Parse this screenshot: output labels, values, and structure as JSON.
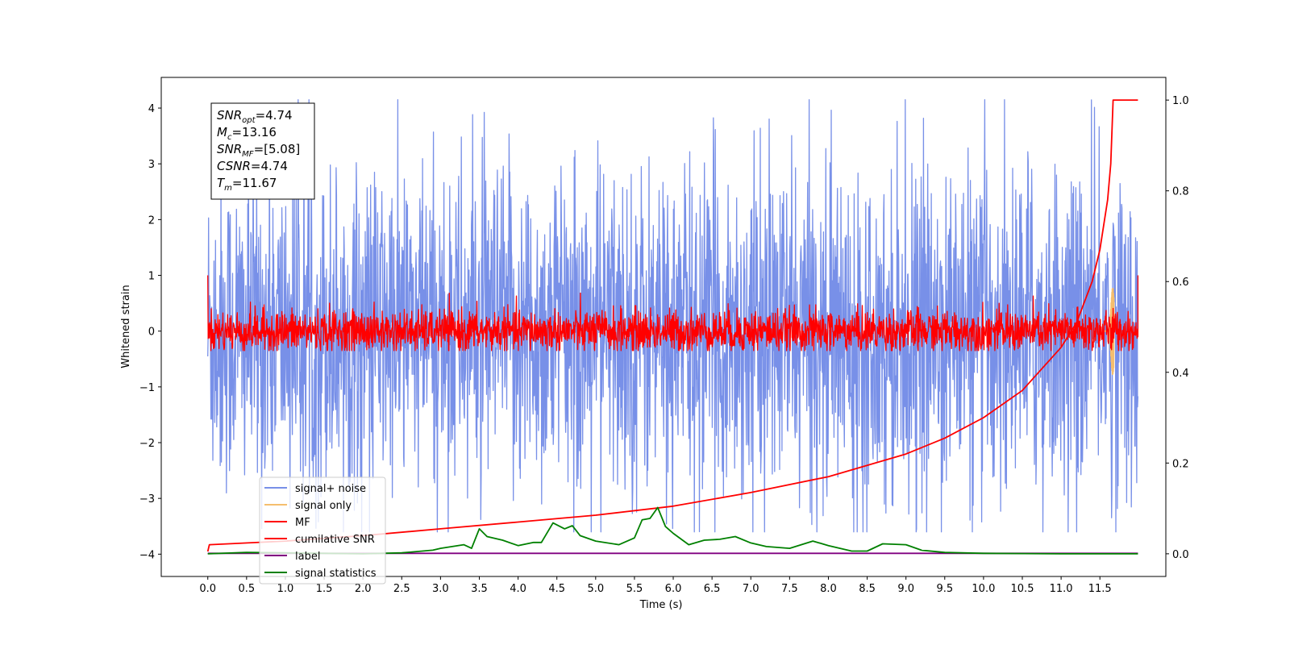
{
  "chart_data": {
    "type": "line",
    "title": "",
    "xlabel": "Time (s)",
    "ylabel": "Whitened strain",
    "xlim": [
      -0.6,
      12.35
    ],
    "ylim": [
      -4.4,
      4.55
    ],
    "y2lim": [
      -0.05,
      1.05
    ],
    "grid": false,
    "legend_position": "lower-left",
    "x_ticks": [
      "0.0",
      "0.5",
      "1.0",
      "1.5",
      "2.0",
      "2.5",
      "3.0",
      "3.5",
      "4.0",
      "4.5",
      "5.0",
      "5.5",
      "6.0",
      "6.5",
      "7.0",
      "7.5",
      "8.0",
      "8.5",
      "9.0",
      "9.5",
      "10.0",
      "10.5",
      "11.0",
      "11.5"
    ],
    "y_ticks": [
      "4",
      "3",
      "2",
      "1",
      "0",
      "−1",
      "−2",
      "−3",
      "−4"
    ],
    "y_tick_values": [
      4,
      3,
      2,
      1,
      0,
      -1,
      -2,
      -3,
      -4
    ],
    "y2_ticks": [
      "1.0",
      "0.8",
      "0.6",
      "0.4",
      "0.2",
      "0.0"
    ],
    "y2_tick_values": [
      1.0,
      0.8,
      0.6,
      0.4,
      0.2,
      0.0
    ],
    "series": [
      {
        "name": "signal+ noise",
        "color": "#7890e8",
        "axis": "left",
        "kind": "noise",
        "x_range": [
          0.0,
          11.99
        ],
        "amplitude_range": [
          -3.6,
          4.15
        ]
      },
      {
        "name": "signal only",
        "color": "#f5be6e",
        "axis": "left",
        "kind": "chirp",
        "merger_time": 11.67,
        "peak_amplitude": 0.78
      },
      {
        "name": "MF",
        "color": "#ff0000",
        "axis": "left",
        "kind": "noise",
        "x_range": [
          0.0,
          11.99
        ],
        "amplitude_range": [
          -0.35,
          1.0
        ]
      },
      {
        "name": "cumilative SNR",
        "color": "#ff0000",
        "axis": "right",
        "x": [
          0.0,
          0.02,
          1.0,
          2.0,
          3.0,
          4.0,
          5.0,
          6.0,
          7.0,
          8.0,
          9.0,
          9.5,
          10.0,
          10.5,
          11.0,
          11.2,
          11.4,
          11.5,
          11.6,
          11.64,
          11.67,
          11.99
        ],
        "y": [
          0.005,
          0.02,
          0.028,
          0.04,
          0.055,
          0.07,
          0.085,
          0.105,
          0.135,
          0.17,
          0.22,
          0.255,
          0.3,
          0.36,
          0.455,
          0.51,
          0.6,
          0.67,
          0.78,
          0.86,
          1.0,
          1.0
        ]
      },
      {
        "name": "label",
        "color": "#800080",
        "axis": "right",
        "x": [
          0.0,
          11.99
        ],
        "y": [
          0.001,
          0.001
        ]
      },
      {
        "name": "signal statistics",
        "color": "#008000",
        "axis": "right",
        "x": [
          0.0,
          0.5,
          1.0,
          1.5,
          2.0,
          2.5,
          2.9,
          3.0,
          3.3,
          3.4,
          3.5,
          3.6,
          3.8,
          4.0,
          4.2,
          4.3,
          4.45,
          4.6,
          4.7,
          4.8,
          5.0,
          5.3,
          5.5,
          5.6,
          5.7,
          5.8,
          5.9,
          6.0,
          6.2,
          6.4,
          6.6,
          6.8,
          7.0,
          7.2,
          7.5,
          7.8,
          8.0,
          8.3,
          8.5,
          8.7,
          9.0,
          9.2,
          9.5,
          10.0,
          11.0,
          11.99
        ],
        "y": [
          0.0,
          0.003,
          0.002,
          0.001,
          0.0,
          0.002,
          0.008,
          0.012,
          0.02,
          0.012,
          0.055,
          0.038,
          0.03,
          0.018,
          0.025,
          0.025,
          0.068,
          0.055,
          0.062,
          0.04,
          0.028,
          0.02,
          0.035,
          0.075,
          0.078,
          0.102,
          0.06,
          0.045,
          0.02,
          0.03,
          0.032,
          0.038,
          0.024,
          0.016,
          0.012,
          0.028,
          0.018,
          0.006,
          0.006,
          0.022,
          0.02,
          0.008,
          0.003,
          0.001,
          0.0,
          0.0
        ]
      }
    ],
    "annotation_lines": [
      {
        "name": "SNR",
        "sub": "opt",
        "value": "=4.74"
      },
      {
        "name": "M",
        "sub": "c",
        "value": "=13.16"
      },
      {
        "name": "SNR",
        "sub": "MF",
        "value": "=[5.08]"
      },
      {
        "name": "CSNR",
        "sub": "",
        "value": "=4.74"
      },
      {
        "name": "T",
        "sub": "m",
        "value": "=11.67"
      }
    ]
  }
}
